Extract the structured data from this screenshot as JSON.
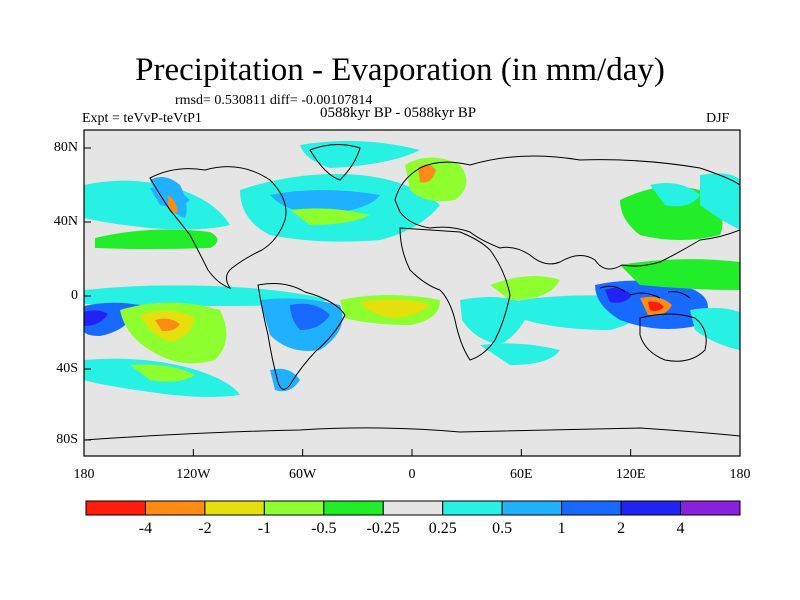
{
  "title": "Precipitation - Evaporation (in mm/day)",
  "stats": "rmsd= 0.530811 diff= -0.00107814",
  "experiment": "Expt = teVvP-teVtP1",
  "period": "0588kyr BP - 0588kyr BP",
  "season": "DJF",
  "axes": {
    "x_ticks": [
      "180",
      "120W",
      "60W",
      "0",
      "60E",
      "120E",
      "180"
    ],
    "y_ticks": [
      "80N",
      "40N",
      "0",
      "40S",
      "80S"
    ]
  },
  "colorbar": {
    "boundary_labels": [
      "-4",
      "-2",
      "-1",
      "-0.5",
      "-0.25",
      "0.25",
      "0.5",
      "1",
      "2",
      "4"
    ],
    "colors": [
      "#ff1c0b",
      "#ff8a14",
      "#e5df0d",
      "#8dfe2e",
      "#21ee29",
      "#e5e5e5",
      "#26f1e2",
      "#1fb1ff",
      "#1769ff",
      "#2222f5",
      "#8822dd"
    ]
  },
  "map": {
    "background_color": "#e5e5e5",
    "regions": [
      {
        "name": "north-pacific-storm-track",
        "color": "#26f1e2"
      },
      {
        "name": "north-atlantic-storm-track",
        "color": "#1fb1ff"
      },
      {
        "name": "itcz-pacific",
        "color": "#1769ff"
      },
      {
        "name": "southeast-pacific-dry-zone",
        "color": "#8dfe2e"
      },
      {
        "name": "south-atlantic-dry-zone",
        "color": "#e5df0d"
      },
      {
        "name": "maritime-continent-wet",
        "color": "#2222f5"
      },
      {
        "name": "south-pacific-convergence",
        "color": "#26f1e2"
      },
      {
        "name": "southern-ocean-band",
        "color": "#26f1e2"
      }
    ]
  }
}
